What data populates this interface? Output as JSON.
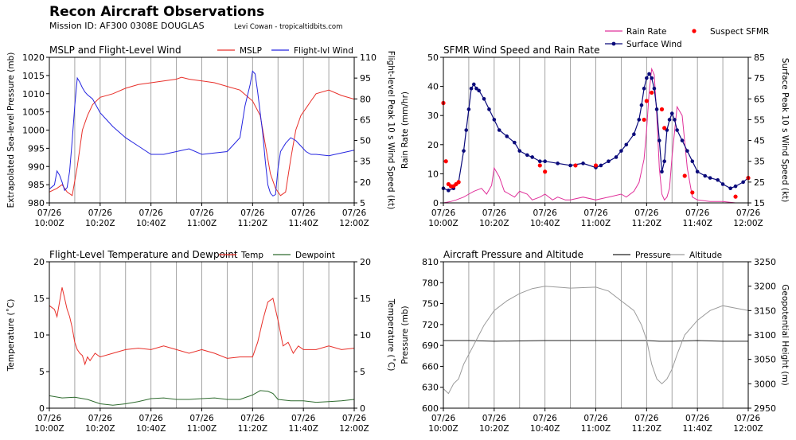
{
  "header": {
    "title": "Recon Aircraft Observations",
    "subtitle": "Mission ID: AF300 0308E DOUGLAS",
    "credit": "Levi Cowan - tropicaltidbits.com"
  },
  "colors": {
    "mslp": "#e8302a",
    "flight_wind": "#2525e0",
    "temp": "#e8302a",
    "dewpoint": "#2e6b2e",
    "rain": "#e0309a",
    "surface_wind": "#0a0a7a",
    "suspect": "#ff0000",
    "pressure": "#222222",
    "altitude": "#9a9a9a",
    "vline": "#9a9a9a"
  },
  "time_ticks": [
    {
      "l1": "07/26",
      "l2": "10:00Z"
    },
    {
      "l1": "07/26",
      "l2": "10:20Z"
    },
    {
      "l1": "07/26",
      "l2": "10:40Z"
    },
    {
      "l1": "07/26",
      "l2": "11:00Z"
    },
    {
      "l1": "07/26",
      "l2": "11:20Z"
    },
    {
      "l1": "07/26",
      "l2": "11:40Z"
    },
    {
      "l1": "07/26",
      "l2": "12:00Z"
    }
  ],
  "chart_data": [
    {
      "type": "line",
      "title": "MSLP and Flight-Level Wind",
      "xlim": [
        0,
        120
      ],
      "ylabel": "Extrapolated Sea-level Pressure (mb)",
      "ylim": [
        980,
        1020
      ],
      "yticks": [
        980,
        985,
        990,
        995,
        1000,
        1005,
        1010,
        1015,
        1020
      ],
      "ylabel2": "Flight-level Peak 10 s Wind Speed (kt)",
      "ylim2": [
        5,
        110
      ],
      "yticks2": [
        5,
        20,
        35,
        50,
        65,
        80,
        95,
        110
      ],
      "series": [
        {
          "name": "MSLP",
          "axis": "left",
          "x": [
            0,
            3,
            5,
            7,
            9,
            11,
            13,
            15,
            17,
            20,
            25,
            30,
            35,
            40,
            45,
            50,
            52,
            55,
            60,
            65,
            70,
            75,
            80,
            83,
            85,
            87,
            89,
            91,
            93,
            95,
            97,
            99,
            101,
            103,
            105,
            110,
            115,
            120
          ],
          "y": [
            983,
            984,
            985,
            983,
            982,
            990,
            1000,
            1004,
            1007,
            1009,
            1010,
            1011.5,
            1012.5,
            1013,
            1013.5,
            1014,
            1014.5,
            1014,
            1013.5,
            1013,
            1012,
            1011,
            1008,
            1004,
            996,
            988,
            984,
            982,
            983,
            992,
            1000,
            1004,
            1006,
            1008,
            1010,
            1011,
            1009.5,
            1008.5
          ]
        },
        {
          "name": "Flight-lvl Wind",
          "axis": "right",
          "x": [
            0,
            2,
            3,
            4,
            5,
            6,
            7,
            8,
            9,
            10,
            11,
            12,
            13,
            14,
            15,
            17,
            20,
            25,
            30,
            35,
            40,
            45,
            50,
            55,
            60,
            65,
            70,
            75,
            77,
            79,
            80,
            81,
            82,
            83,
            84,
            85,
            86,
            87,
            88,
            89,
            90,
            91,
            93,
            95,
            97,
            99,
            101,
            103,
            105,
            110,
            115,
            120
          ],
          "y": [
            15,
            18,
            28,
            25,
            20,
            14,
            16,
            28,
            50,
            75,
            95,
            92,
            88,
            85,
            83,
            80,
            70,
            60,
            52,
            46,
            40,
            40,
            42,
            44,
            40,
            41,
            42,
            52,
            75,
            90,
            100,
            98,
            85,
            70,
            55,
            35,
            18,
            12,
            10,
            11,
            30,
            42,
            48,
            52,
            50,
            46,
            42,
            40,
            40,
            39,
            41,
            43
          ]
        }
      ]
    },
    {
      "type": "line",
      "title": "SFMR Wind Speed and Rain Rate",
      "xlim": [
        0,
        120
      ],
      "ylabel": "Rain Rate (mm/hr)",
      "ylim": [
        0,
        50
      ],
      "yticks": [
        0,
        10,
        20,
        30,
        40,
        50
      ],
      "ylabel2": "Surface Peak 10 s Wind Speed (kt)",
      "ylim2": [
        15,
        85
      ],
      "yticks2": [
        15,
        25,
        35,
        45,
        55,
        65,
        75,
        85
      ],
      "series": [
        {
          "name": "Rain Rate",
          "axis": "left",
          "x": [
            0,
            3,
            5,
            8,
            10,
            12,
            15,
            17,
            19,
            20,
            22,
            24,
            26,
            28,
            30,
            33,
            35,
            38,
            40,
            43,
            45,
            48,
            50,
            55,
            60,
            65,
            70,
            72,
            75,
            77,
            79,
            80,
            81,
            82,
            83,
            84,
            85,
            86,
            87,
            88,
            89,
            90,
            92,
            94,
            96,
            98,
            100,
            105,
            110,
            115,
            120
          ],
          "y": [
            0,
            0.5,
            1,
            2,
            3,
            4,
            5,
            3,
            6,
            12,
            9,
            4,
            3,
            2,
            4,
            3,
            1,
            2,
            3,
            1,
            2,
            1,
            1,
            2,
            1,
            2,
            3,
            2,
            4,
            7,
            15,
            25,
            38,
            46,
            44,
            30,
            12,
            3,
            1,
            2,
            5,
            16,
            33,
            30,
            12,
            2,
            1,
            0.5,
            0.5,
            0,
            0
          ]
        },
        {
          "name": "Surface Wind",
          "axis": "right",
          "x": [
            0,
            2,
            4,
            6,
            8,
            9,
            10,
            11,
            12,
            13,
            14,
            16,
            18,
            20,
            22,
            25,
            28,
            30,
            33,
            35,
            38,
            40,
            45,
            50,
            55,
            60,
            62,
            65,
            68,
            70,
            72,
            75,
            77,
            78,
            79,
            80,
            81,
            82,
            83,
            84,
            85,
            86,
            87,
            88,
            89,
            90,
            91,
            92,
            94,
            96,
            98,
            100,
            103,
            105,
            108,
            110,
            113,
            115,
            118,
            120
          ],
          "y": [
            22,
            21,
            22,
            25,
            40,
            50,
            60,
            70,
            72,
            70,
            69,
            65,
            60,
            55,
            50,
            47,
            44,
            40,
            38,
            37,
            35,
            35,
            34,
            33,
            34,
            32,
            33,
            35,
            37,
            40,
            43,
            48,
            55,
            62,
            70,
            75,
            77,
            75,
            70,
            60,
            45,
            30,
            35,
            50,
            55,
            58,
            55,
            50,
            45,
            40,
            35,
            30,
            28,
            27,
            26,
            24,
            22,
            23,
            25,
            27
          ]
        },
        {
          "name": "Suspect SFMR",
          "axis": "right",
          "type": "scatter",
          "x": [
            0,
            1,
            2,
            3,
            4,
            5,
            6,
            38,
            40,
            52,
            60,
            79,
            80,
            82,
            86,
            87,
            95,
            98,
            115,
            120
          ],
          "y": [
            63,
            35,
            24,
            23,
            23,
            24,
            25,
            33,
            30,
            33,
            33,
            55,
            64,
            68,
            60,
            51,
            28,
            20,
            18,
            27
          ]
        }
      ]
    },
    {
      "type": "line",
      "title": "Flight-Level Temperature and Dewpoint",
      "xlim": [
        0,
        120
      ],
      "ylabel": "Temperature (˚C)",
      "ylim": [
        0,
        20
      ],
      "yticks": [
        0,
        5,
        10,
        15,
        20
      ],
      "ylabel2": "Temperature (˚C)",
      "ylim2": [
        0,
        20
      ],
      "yticks2": [
        0,
        5,
        10,
        15,
        20
      ],
      "series": [
        {
          "name": "Temp",
          "axis": "left",
          "x": [
            0,
            2,
            3,
            4,
            5,
            6,
            7,
            8,
            9,
            10,
            11,
            12,
            13,
            14,
            15,
            16,
            17,
            18,
            20,
            25,
            30,
            35,
            40,
            45,
            50,
            55,
            60,
            65,
            70,
            75,
            80,
            82,
            84,
            86,
            88,
            90,
            92,
            94,
            96,
            98,
            100,
            105,
            110,
            115,
            120
          ],
          "y": [
            14,
            13.5,
            12.5,
            14.5,
            16.5,
            15,
            13.5,
            12.5,
            11,
            9,
            8,
            7.5,
            7.2,
            6,
            7,
            6.5,
            7,
            7.5,
            7,
            7.5,
            8,
            8.2,
            8,
            8.5,
            8,
            7.5,
            8,
            7.5,
            6.8,
            7,
            7,
            9,
            12,
            14.5,
            15,
            12,
            8.5,
            9,
            7.5,
            8.5,
            8,
            8,
            8.5,
            8,
            8.2
          ]
        },
        {
          "name": "Dewpoint",
          "axis": "left",
          "x": [
            0,
            5,
            10,
            15,
            20,
            25,
            30,
            35,
            40,
            45,
            50,
            55,
            60,
            65,
            70,
            75,
            80,
            83,
            86,
            88,
            90,
            95,
            100,
            105,
            110,
            115,
            120
          ],
          "y": [
            1.7,
            1.4,
            1.5,
            1.2,
            0.6,
            0.4,
            0.6,
            0.9,
            1.3,
            1.4,
            1.2,
            1.2,
            1.3,
            1.4,
            1.2,
            1.2,
            1.8,
            2.4,
            2.3,
            2.0,
            1.2,
            1.0,
            1.0,
            0.8,
            0.9,
            1.0,
            1.2
          ]
        }
      ]
    },
    {
      "type": "line",
      "title": "Aircraft Pressure and Altitude",
      "xlim": [
        0,
        120
      ],
      "ylabel": "Pressure (mb)",
      "ylim": [
        600,
        810
      ],
      "yticks": [
        600,
        630,
        660,
        690,
        720,
        750,
        780,
        810
      ],
      "ylabel2": "Geopotential Height (m)",
      "ylim2": [
        2950,
        3250
      ],
      "yticks2": [
        2950,
        3000,
        3050,
        3100,
        3150,
        3200,
        3250
      ],
      "series": [
        {
          "name": "Pressure",
          "axis": "left",
          "x": [
            0,
            10,
            20,
            40,
            60,
            80,
            85,
            90,
            100,
            110,
            120
          ],
          "y": [
            697,
            697,
            696,
            697,
            697,
            697,
            696,
            696,
            697,
            696,
            696
          ]
        },
        {
          "name": "Altitude",
          "axis": "right",
          "x": [
            0,
            2,
            4,
            6,
            8,
            10,
            12,
            14,
            16,
            18,
            20,
            25,
            30,
            35,
            40,
            45,
            50,
            55,
            60,
            65,
            70,
            75,
            78,
            80,
            82,
            84,
            86,
            88,
            90,
            92,
            95,
            100,
            105,
            110,
            115,
            120
          ],
          "y": [
            2990,
            2980,
            3000,
            3010,
            3040,
            3060,
            3080,
            3100,
            3120,
            3135,
            3150,
            3170,
            3185,
            3195,
            3200,
            3198,
            3196,
            3197,
            3198,
            3190,
            3170,
            3150,
            3120,
            3090,
            3040,
            3010,
            3000,
            3010,
            3030,
            3060,
            3100,
            3130,
            3150,
            3160,
            3155,
            3150
          ]
        }
      ]
    }
  ],
  "legends": {
    "p1": [
      {
        "label": "MSLP"
      },
      {
        "label": "Flight-lvl Wind"
      }
    ],
    "p2": [
      {
        "label": "Rain Rate"
      },
      {
        "label": "Surface Wind"
      },
      {
        "label": "Suspect SFMR"
      }
    ],
    "p3": [
      {
        "label": "Temp"
      },
      {
        "label": "Dewpoint"
      }
    ],
    "p4": [
      {
        "label": "Pressure"
      },
      {
        "label": "Altitude"
      }
    ]
  }
}
